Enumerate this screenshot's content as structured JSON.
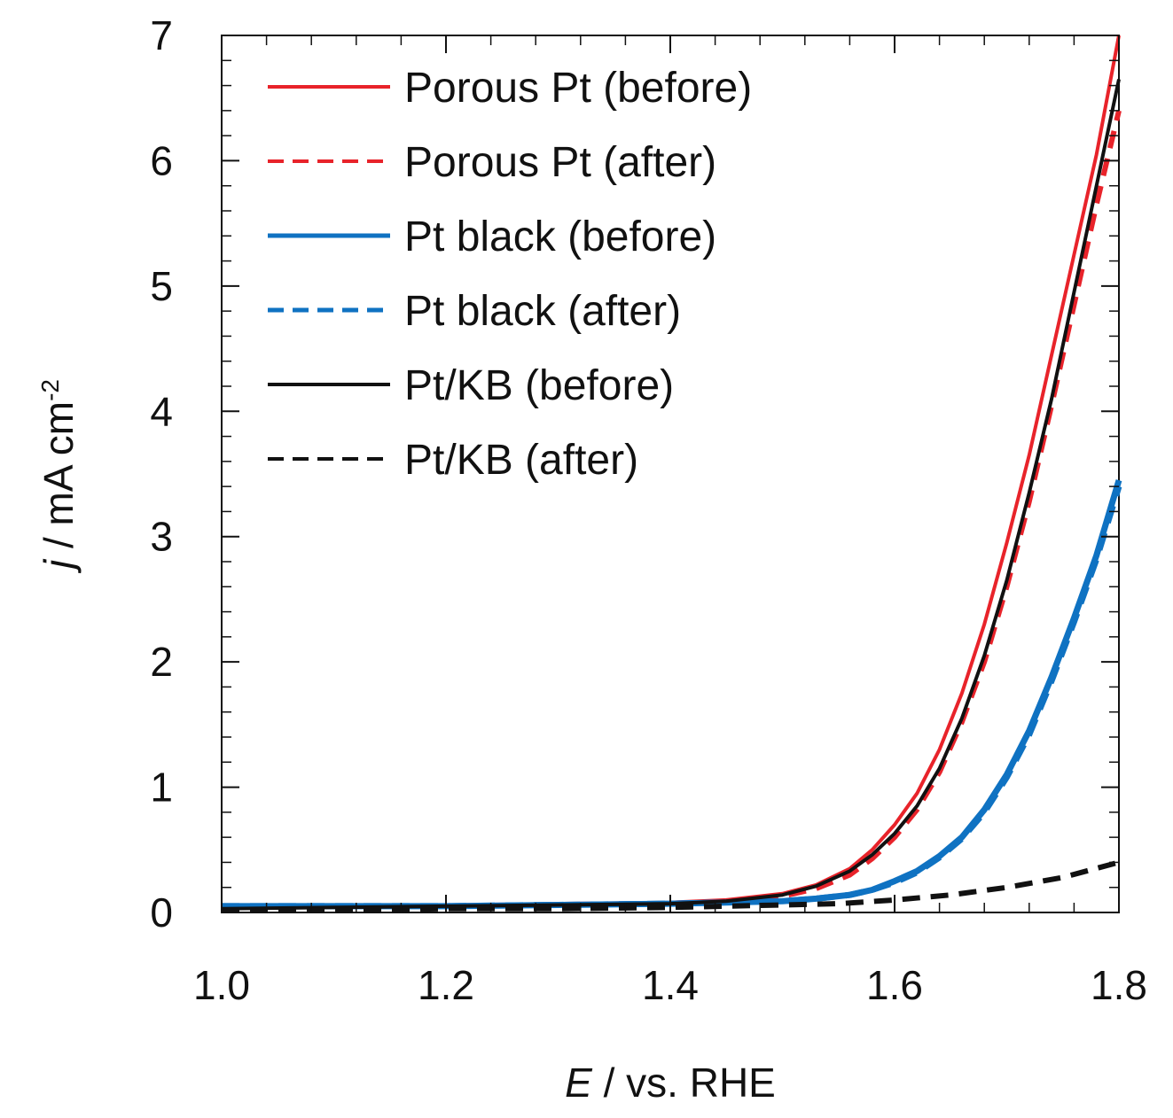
{
  "chart_data": {
    "type": "line",
    "title": "",
    "xlabel": {
      "var": "E",
      "rest": " /  vs. RHE"
    },
    "ylabel": {
      "var": "j",
      "rest": " / mA cm",
      "sup": "-2"
    },
    "xlim": [
      1.0,
      1.8
    ],
    "ylim": [
      0,
      7
    ],
    "x_ticks": [
      1.0,
      1.2,
      1.4,
      1.6,
      1.8
    ],
    "x_tick_labels": [
      "1.0",
      "1.2",
      "1.4",
      "1.6",
      "1.8"
    ],
    "y_ticks": [
      0,
      1,
      2,
      3,
      4,
      5,
      6,
      7
    ],
    "y_tick_labels": [
      "0",
      "1",
      "2",
      "3",
      "4",
      "5",
      "6",
      "7"
    ],
    "grid": false,
    "legend_position": "top-left",
    "series": [
      {
        "name": "Porous Pt (before)",
        "color": "#e8232a",
        "dash": "solid",
        "x": [
          1.0,
          1.1,
          1.2,
          1.3,
          1.4,
          1.45,
          1.5,
          1.53,
          1.56,
          1.58,
          1.6,
          1.62,
          1.64,
          1.66,
          1.68,
          1.7,
          1.72,
          1.74,
          1.76,
          1.78,
          1.8
        ],
        "y": [
          0.05,
          0.05,
          0.06,
          0.07,
          0.08,
          0.1,
          0.15,
          0.22,
          0.35,
          0.5,
          0.7,
          0.95,
          1.3,
          1.75,
          2.3,
          2.95,
          3.65,
          4.45,
          5.25,
          6.05,
          7.0
        ]
      },
      {
        "name": "Porous Pt (after)",
        "color": "#e8232a",
        "dash": "dashed",
        "x": [
          1.0,
          1.1,
          1.2,
          1.3,
          1.4,
          1.45,
          1.5,
          1.53,
          1.56,
          1.58,
          1.6,
          1.62,
          1.64,
          1.66,
          1.68,
          1.7,
          1.72,
          1.74,
          1.76,
          1.78,
          1.8
        ],
        "y": [
          0.03,
          0.04,
          0.05,
          0.06,
          0.07,
          0.09,
          0.13,
          0.19,
          0.3,
          0.43,
          0.6,
          0.82,
          1.12,
          1.52,
          2.0,
          2.6,
          3.28,
          4.05,
          4.85,
          5.65,
          6.4
        ]
      },
      {
        "name": "Pt black (before)",
        "color": "#0f72c2",
        "dash": "solid",
        "x": [
          1.0,
          1.1,
          1.2,
          1.3,
          1.4,
          1.45,
          1.5,
          1.53,
          1.56,
          1.58,
          1.6,
          1.62,
          1.64,
          1.66,
          1.68,
          1.7,
          1.72,
          1.74,
          1.76,
          1.78,
          1.8
        ],
        "y": [
          0.05,
          0.05,
          0.05,
          0.06,
          0.07,
          0.08,
          0.09,
          0.11,
          0.14,
          0.18,
          0.25,
          0.33,
          0.45,
          0.6,
          0.82,
          1.1,
          1.45,
          1.88,
          2.35,
          2.85,
          3.45
        ]
      },
      {
        "name": "Pt black (after)",
        "color": "#0f72c2",
        "dash": "dashed",
        "x": [
          1.0,
          1.1,
          1.2,
          1.3,
          1.4,
          1.45,
          1.5,
          1.53,
          1.56,
          1.58,
          1.6,
          1.62,
          1.64,
          1.66,
          1.68,
          1.7,
          1.72,
          1.74,
          1.76,
          1.78,
          1.8
        ],
        "y": [
          0.05,
          0.05,
          0.05,
          0.06,
          0.07,
          0.08,
          0.09,
          0.11,
          0.14,
          0.18,
          0.24,
          0.32,
          0.44,
          0.59,
          0.8,
          1.08,
          1.42,
          1.85,
          2.32,
          2.82,
          3.4
        ]
      },
      {
        "name": "Pt/KB (before)",
        "color": "#111111",
        "dash": "solid",
        "x": [
          1.0,
          1.1,
          1.2,
          1.3,
          1.4,
          1.45,
          1.5,
          1.53,
          1.56,
          1.58,
          1.6,
          1.62,
          1.64,
          1.66,
          1.68,
          1.7,
          1.72,
          1.74,
          1.76,
          1.78,
          1.8
        ],
        "y": [
          0.03,
          0.04,
          0.05,
          0.06,
          0.07,
          0.09,
          0.14,
          0.21,
          0.33,
          0.46,
          0.63,
          0.85,
          1.15,
          1.55,
          2.05,
          2.65,
          3.35,
          4.1,
          4.95,
          5.8,
          6.65
        ]
      },
      {
        "name": "Pt/KB (after)",
        "color": "#111111",
        "dash": "dashed",
        "x": [
          1.0,
          1.1,
          1.2,
          1.3,
          1.4,
          1.45,
          1.5,
          1.55,
          1.6,
          1.65,
          1.7,
          1.75,
          1.8
        ],
        "y": [
          0.02,
          0.02,
          0.03,
          0.03,
          0.04,
          0.05,
          0.06,
          0.07,
          0.1,
          0.14,
          0.2,
          0.28,
          0.4
        ]
      }
    ]
  }
}
